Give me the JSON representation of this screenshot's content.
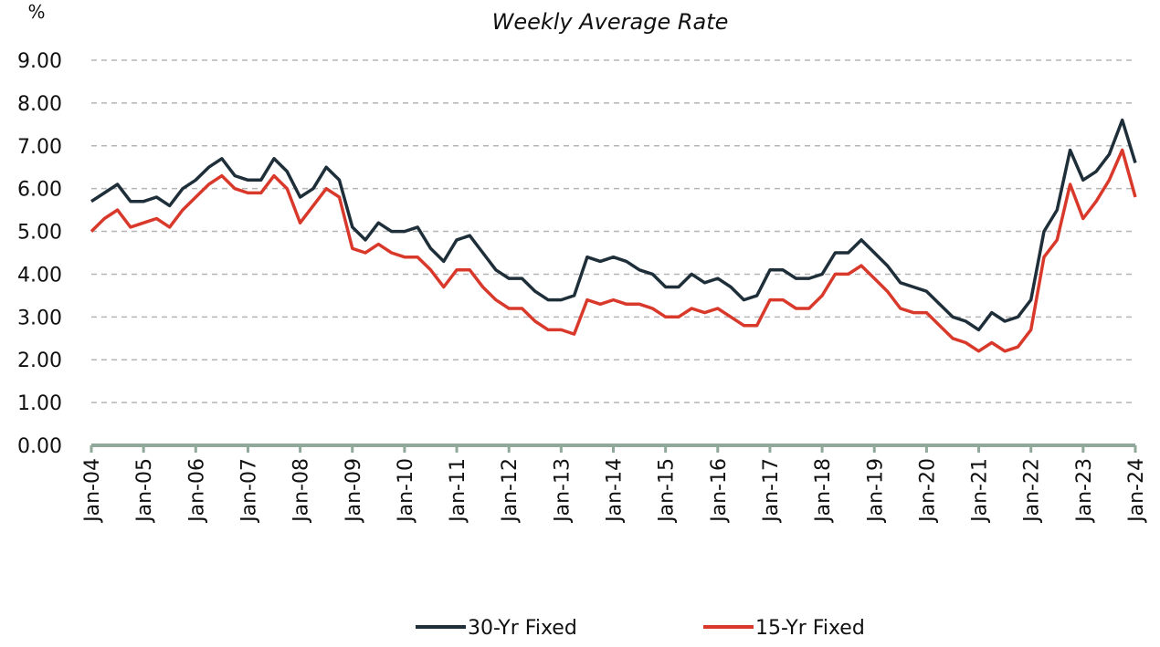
{
  "chart_data": {
    "type": "line",
    "subtitle": "Weekly Average Rate",
    "y_label": "%",
    "x": [
      "2004-01",
      "2004-04",
      "2004-07",
      "2004-10",
      "2005-01",
      "2005-04",
      "2005-07",
      "2005-10",
      "2006-01",
      "2006-04",
      "2006-07",
      "2006-10",
      "2007-01",
      "2007-04",
      "2007-07",
      "2007-10",
      "2008-01",
      "2008-04",
      "2008-07",
      "2008-10",
      "2009-01",
      "2009-04",
      "2009-07",
      "2009-10",
      "2010-01",
      "2010-04",
      "2010-07",
      "2010-10",
      "2011-01",
      "2011-04",
      "2011-07",
      "2011-10",
      "2012-01",
      "2012-04",
      "2012-07",
      "2012-10",
      "2013-01",
      "2013-04",
      "2013-07",
      "2013-10",
      "2014-01",
      "2014-04",
      "2014-07",
      "2014-10",
      "2015-01",
      "2015-04",
      "2015-07",
      "2015-10",
      "2016-01",
      "2016-04",
      "2016-07",
      "2016-10",
      "2017-01",
      "2017-04",
      "2017-07",
      "2017-10",
      "2018-01",
      "2018-04",
      "2018-07",
      "2018-10",
      "2019-01",
      "2019-04",
      "2019-07",
      "2019-10",
      "2020-01",
      "2020-04",
      "2020-07",
      "2020-10",
      "2021-01",
      "2021-04",
      "2021-07",
      "2021-10",
      "2022-01",
      "2022-04",
      "2022-07",
      "2022-10",
      "2023-01",
      "2023-04",
      "2023-07",
      "2023-10",
      "2024-01"
    ],
    "series": [
      {
        "name": "30-Yr Fixed",
        "color": "#1f2f3a",
        "values": [
          5.7,
          5.9,
          6.1,
          5.7,
          5.7,
          5.8,
          5.6,
          6.0,
          6.2,
          6.5,
          6.7,
          6.3,
          6.2,
          6.2,
          6.7,
          6.4,
          5.8,
          6.0,
          6.5,
          6.2,
          5.1,
          4.8,
          5.2,
          5.0,
          5.0,
          5.1,
          4.6,
          4.3,
          4.8,
          4.9,
          4.5,
          4.1,
          3.9,
          3.9,
          3.6,
          3.4,
          3.4,
          3.5,
          4.4,
          4.3,
          4.4,
          4.3,
          4.1,
          4.0,
          3.7,
          3.7,
          4.0,
          3.8,
          3.9,
          3.7,
          3.4,
          3.5,
          4.1,
          4.1,
          3.9,
          3.9,
          4.0,
          4.5,
          4.5,
          4.8,
          4.5,
          4.2,
          3.8,
          3.7,
          3.6,
          3.3,
          3.0,
          2.9,
          2.7,
          3.1,
          2.9,
          3.0,
          3.4,
          5.0,
          5.5,
          6.9,
          6.2,
          6.4,
          6.8,
          7.6,
          6.6
        ]
      },
      {
        "name": "15-Yr Fixed",
        "color": "#d8392b",
        "values": [
          5.0,
          5.3,
          5.5,
          5.1,
          5.2,
          5.3,
          5.1,
          5.5,
          5.8,
          6.1,
          6.3,
          6.0,
          5.9,
          5.9,
          6.3,
          6.0,
          5.2,
          5.6,
          6.0,
          5.8,
          4.6,
          4.5,
          4.7,
          4.5,
          4.4,
          4.4,
          4.1,
          3.7,
          4.1,
          4.1,
          3.7,
          3.4,
          3.2,
          3.2,
          2.9,
          2.7,
          2.7,
          2.6,
          3.4,
          3.3,
          3.4,
          3.3,
          3.3,
          3.2,
          3.0,
          3.0,
          3.2,
          3.1,
          3.2,
          3.0,
          2.8,
          2.8,
          3.4,
          3.4,
          3.2,
          3.2,
          3.5,
          4.0,
          4.0,
          4.2,
          3.9,
          3.6,
          3.2,
          3.1,
          3.1,
          2.8,
          2.5,
          2.4,
          2.2,
          2.4,
          2.2,
          2.3,
          2.7,
          4.4,
          4.8,
          6.1,
          5.3,
          5.7,
          6.2,
          6.9,
          5.8
        ]
      }
    ],
    "xlim": [
      "2004-01",
      "2024-01"
    ],
    "xticks": [
      {
        "value": "2004-01",
        "label": "Jan-04"
      },
      {
        "value": "2005-01",
        "label": "Jan-05"
      },
      {
        "value": "2006-01",
        "label": "Jan-06"
      },
      {
        "value": "2007-01",
        "label": "Jan-07"
      },
      {
        "value": "2008-01",
        "label": "Jan-08"
      },
      {
        "value": "2009-01",
        "label": "Jan-09"
      },
      {
        "value": "2010-01",
        "label": "Jan-10"
      },
      {
        "value": "2011-01",
        "label": "Jan-11"
      },
      {
        "value": "2012-01",
        "label": "Jan-12"
      },
      {
        "value": "2013-01",
        "label": "Jan-13"
      },
      {
        "value": "2014-01",
        "label": "Jan-14"
      },
      {
        "value": "2015-01",
        "label": "Jan-15"
      },
      {
        "value": "2016-01",
        "label": "Jan-16"
      },
      {
        "value": "2017-01",
        "label": "Jan-17"
      },
      {
        "value": "2018-01",
        "label": "Jan-18"
      },
      {
        "value": "2019-01",
        "label": "Jan-19"
      },
      {
        "value": "2020-01",
        "label": "Jan-20"
      },
      {
        "value": "2021-01",
        "label": "Jan-21"
      },
      {
        "value": "2022-01",
        "label": "Jan-22"
      },
      {
        "value": "2023-01",
        "label": "Jan-23"
      },
      {
        "value": "2024-01",
        "label": "Jan-24"
      }
    ],
    "ylim": [
      0,
      9
    ],
    "yticks": [
      {
        "value": 0,
        "label": "0.00"
      },
      {
        "value": 1,
        "label": "1.00"
      },
      {
        "value": 2,
        "label": "2.00"
      },
      {
        "value": 3,
        "label": "3.00"
      },
      {
        "value": 4,
        "label": "4.00"
      },
      {
        "value": 5,
        "label": "5.00"
      },
      {
        "value": 6,
        "label": "6.00"
      },
      {
        "value": 7,
        "label": "7.00"
      },
      {
        "value": 8,
        "label": "8.00"
      },
      {
        "value": 9,
        "label": "9.00"
      }
    ],
    "grid": true,
    "legend": "bottom"
  }
}
